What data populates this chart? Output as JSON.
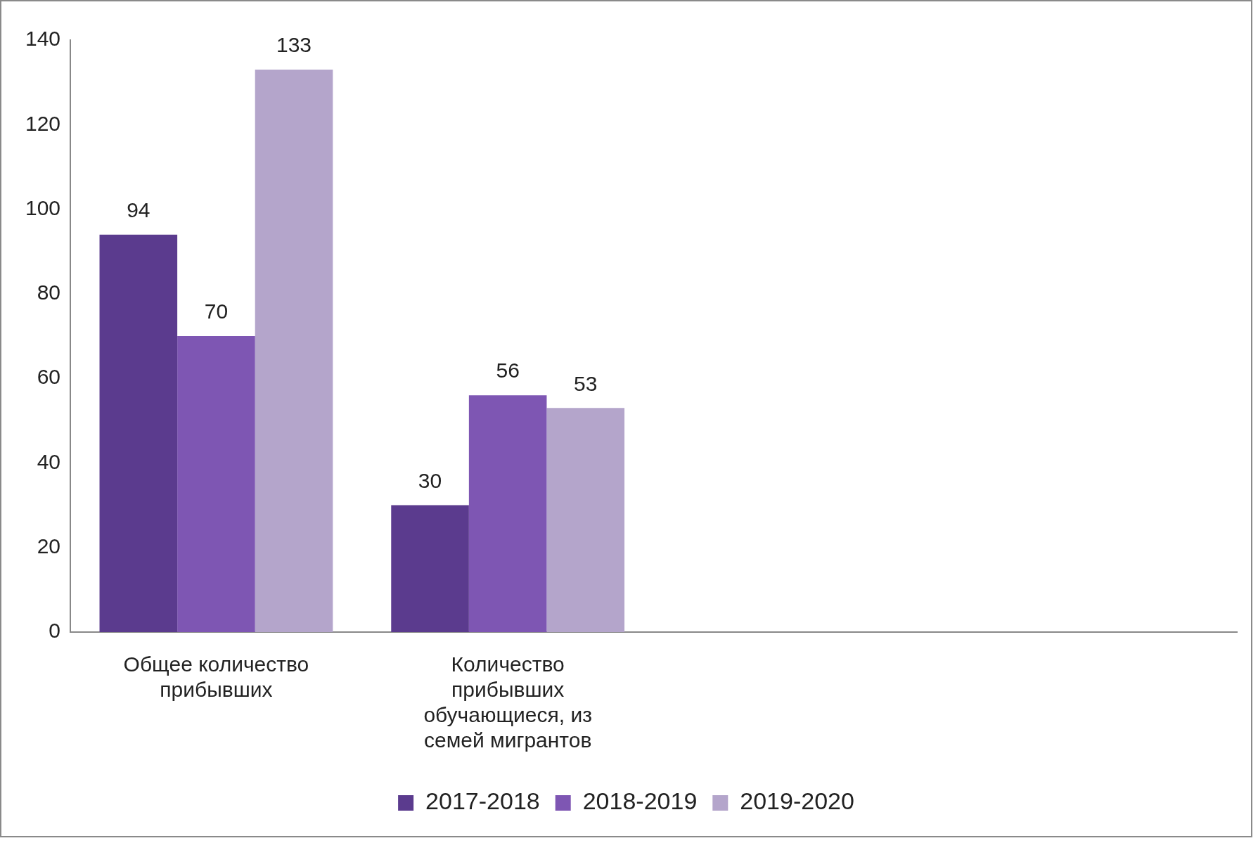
{
  "chart_data": {
    "type": "bar",
    "categories": [
      "Общее количество прибывших",
      "Количество прибывших обучающиеся, из семей мигрантов",
      null,
      null
    ],
    "series": [
      {
        "name": "2017-2018",
        "color": "#5b3b8e",
        "values": [
          94,
          30,
          null,
          null
        ]
      },
      {
        "name": "2018-2019",
        "color": "#7e56b3",
        "values": [
          70,
          56,
          null,
          null
        ]
      },
      {
        "name": "2019-2020",
        "color": "#b4a5cb",
        "values": [
          133,
          53,
          null,
          null
        ]
      }
    ],
    "ylim": [
      0,
      140
    ],
    "yticks": [
      0,
      20,
      40,
      60,
      80,
      100,
      120,
      140
    ],
    "grid": false,
    "legend": "bottom",
    "data_labels": true
  }
}
